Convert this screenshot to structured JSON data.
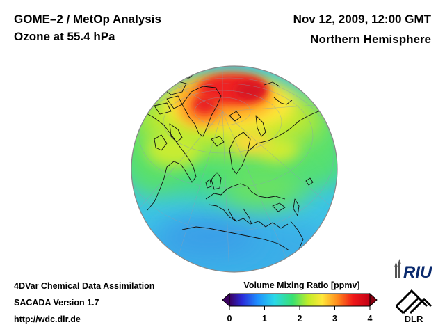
{
  "header": {
    "title_line1": "GOME–2 / MetOp Analysis",
    "title_line2": "Ozone at 55.4 hPa",
    "date": "Nov 12, 2009, 12:00 GMT",
    "region": "Northern Hemisphere"
  },
  "footer": {
    "line1": "4DVar Chemical Data Assimilation",
    "line2": "SACADA Version 1.7",
    "line3": "http://wdc.dlr.de"
  },
  "colorbar": {
    "title": "Volume Mixing Ratio [ppmv]",
    "ticks": [
      "0",
      "1",
      "2",
      "3",
      "4"
    ],
    "min": 0,
    "max": 4,
    "colors": [
      "#3a0060",
      "#2a2ad8",
      "#1e8fff",
      "#2ad8e8",
      "#38e070",
      "#c0ec28",
      "#ffe83a",
      "#ff8a1c",
      "#f01818",
      "#c40016"
    ]
  },
  "logos": {
    "riu": "RIU",
    "dlr": "DLR"
  },
  "map": {
    "projection": "orthographic",
    "ocean_color": "#3cc3e6",
    "max_color": "#e8162a"
  }
}
